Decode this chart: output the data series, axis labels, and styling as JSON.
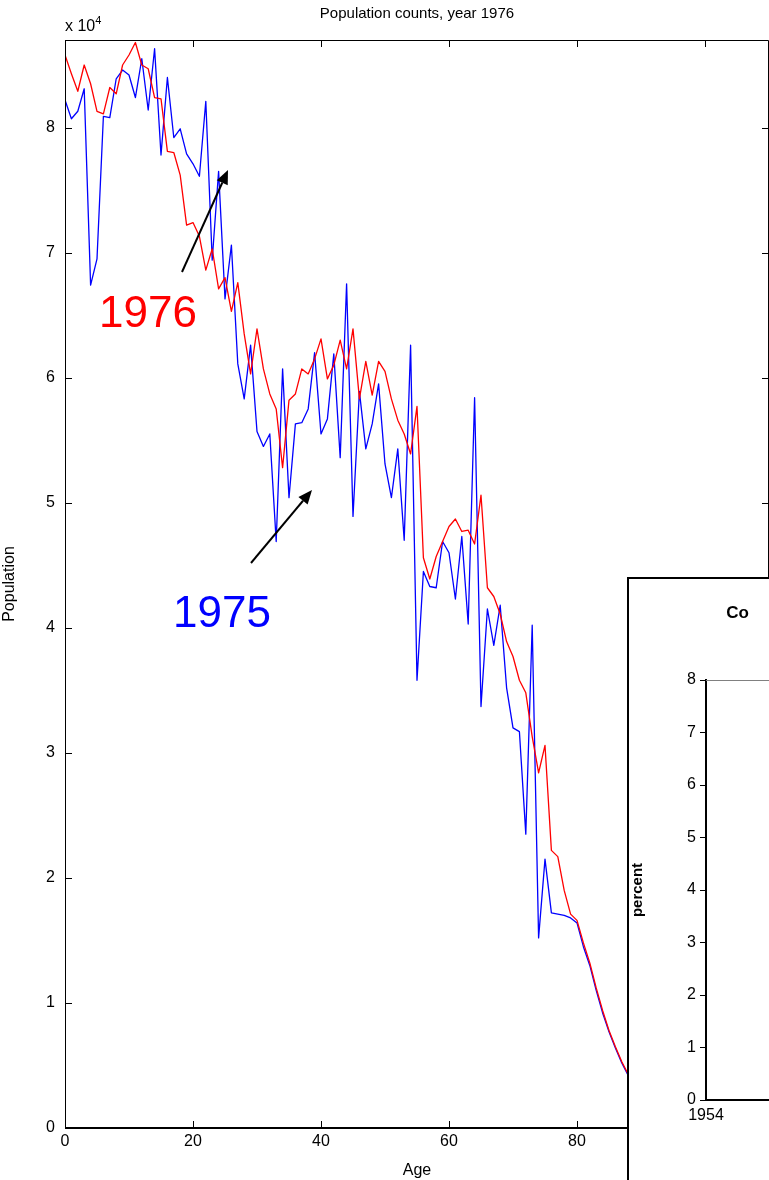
{
  "chart_data": [
    {
      "type": "line",
      "title": "Population counts, year 1976",
      "xlabel": "Age",
      "ylabel": "Population",
      "x": [
        0,
        1,
        2,
        3,
        4,
        5,
        6,
        7,
        8,
        9,
        10,
        11,
        12,
        13,
        14,
        15,
        16,
        17,
        18,
        19,
        20,
        21,
        22,
        23,
        24,
        25,
        26,
        27,
        28,
        29,
        30,
        31,
        32,
        33,
        34,
        35,
        36,
        37,
        38,
        39,
        40,
        41,
        42,
        43,
        44,
        45,
        46,
        47,
        48,
        49,
        50,
        51,
        52,
        53,
        54,
        55,
        56,
        57,
        58,
        59,
        60,
        61,
        62,
        63,
        64,
        65,
        66,
        67,
        68,
        69,
        70,
        71,
        72,
        73,
        74,
        75,
        76,
        77,
        78,
        79,
        80,
        81,
        82,
        83,
        84,
        85,
        86,
        87,
        88
      ],
      "series": [
        {
          "color": "#ff0000",
          "values": [
            8.58,
            8.43,
            8.29,
            8.5,
            8.35,
            8.13,
            8.11,
            8.32,
            8.27,
            8.5,
            8.58,
            8.68,
            8.5,
            8.47,
            8.24,
            8.23,
            7.81,
            7.8,
            7.62,
            7.22,
            7.24,
            7.13,
            6.86,
            7.03,
            6.71,
            6.8,
            6.53,
            6.76,
            6.35,
            6.03,
            6.39,
            6.07,
            5.87,
            5.75,
            5.28,
            5.82,
            5.87,
            6.07,
            6.03,
            6.15,
            6.31,
            5.99,
            6.1,
            6.3,
            6.07,
            6.39,
            5.83,
            6.13,
            5.86,
            6.13,
            6.05,
            5.83,
            5.66,
            5.55,
            5.39,
            5.77,
            4.56,
            4.39,
            4.57,
            4.69,
            4.81,
            4.87,
            4.77,
            4.78,
            4.67,
            5.06,
            4.32,
            4.25,
            4.11,
            3.89,
            3.77,
            3.58,
            3.48,
            3.13,
            2.84,
            3.06,
            2.22,
            2.17,
            1.9,
            1.71,
            1.66,
            1.48,
            1.32,
            1.12,
            0.94,
            0.78,
            0.65,
            0.53,
            0.43
          ]
        },
        {
          "color": "#0000ff",
          "values": [
            8.22,
            8.07,
            8.13,
            8.31,
            6.74,
            6.95,
            8.09,
            8.08,
            8.39,
            8.46,
            8.42,
            8.24,
            8.55,
            8.14,
            8.63,
            7.78,
            8.4,
            7.92,
            7.99,
            7.79,
            7.71,
            7.61,
            8.21,
            6.94,
            7.65,
            6.63,
            7.06,
            6.11,
            5.83,
            6.26,
            5.57,
            5.45,
            5.55,
            4.69,
            6.07,
            5.04,
            5.63,
            5.64,
            5.75,
            6.2,
            5.55,
            5.67,
            6.19,
            5.36,
            6.75,
            4.89,
            5.89,
            5.43,
            5.63,
            5.95,
            5.31,
            5.04,
            5.43,
            4.7,
            6.26,
            3.58,
            4.45,
            4.33,
            4.32,
            4.69,
            4.6,
            4.23,
            4.73,
            4.03,
            5.84,
            3.37,
            4.15,
            3.86,
            4.18,
            3.52,
            3.2,
            3.17,
            2.35,
            4.02,
            1.52,
            2.15,
            1.72,
            1.71,
            1.7,
            1.68,
            1.64,
            1.45,
            1.3,
            1.1,
            0.92,
            0.77,
            0.64,
            0.52,
            0.42
          ]
        }
      ],
      "xlim": [
        0,
        110
      ],
      "xticks": [
        0,
        20,
        40,
        60,
        80,
        {
          "value": 100,
          "label": null
        }
      ],
      "ylim": [
        0,
        8.7
      ],
      "yticks": [
        0,
        1,
        2,
        3,
        4,
        5,
        6,
        7,
        8
      ],
      "annotations": [
        "x 10$^{4}$",
        "1976",
        "1975"
      ]
    },
    {
      "type": "line",
      "title": "Co",
      "ylabel": "percent",
      "categories": [
        "1954"
      ],
      "values": [
        null
      ],
      "ylim": [
        0,
        8
      ],
      "yticks": [
        0,
        1,
        2,
        3,
        4,
        5,
        6,
        7,
        8
      ]
    }
  ]
}
